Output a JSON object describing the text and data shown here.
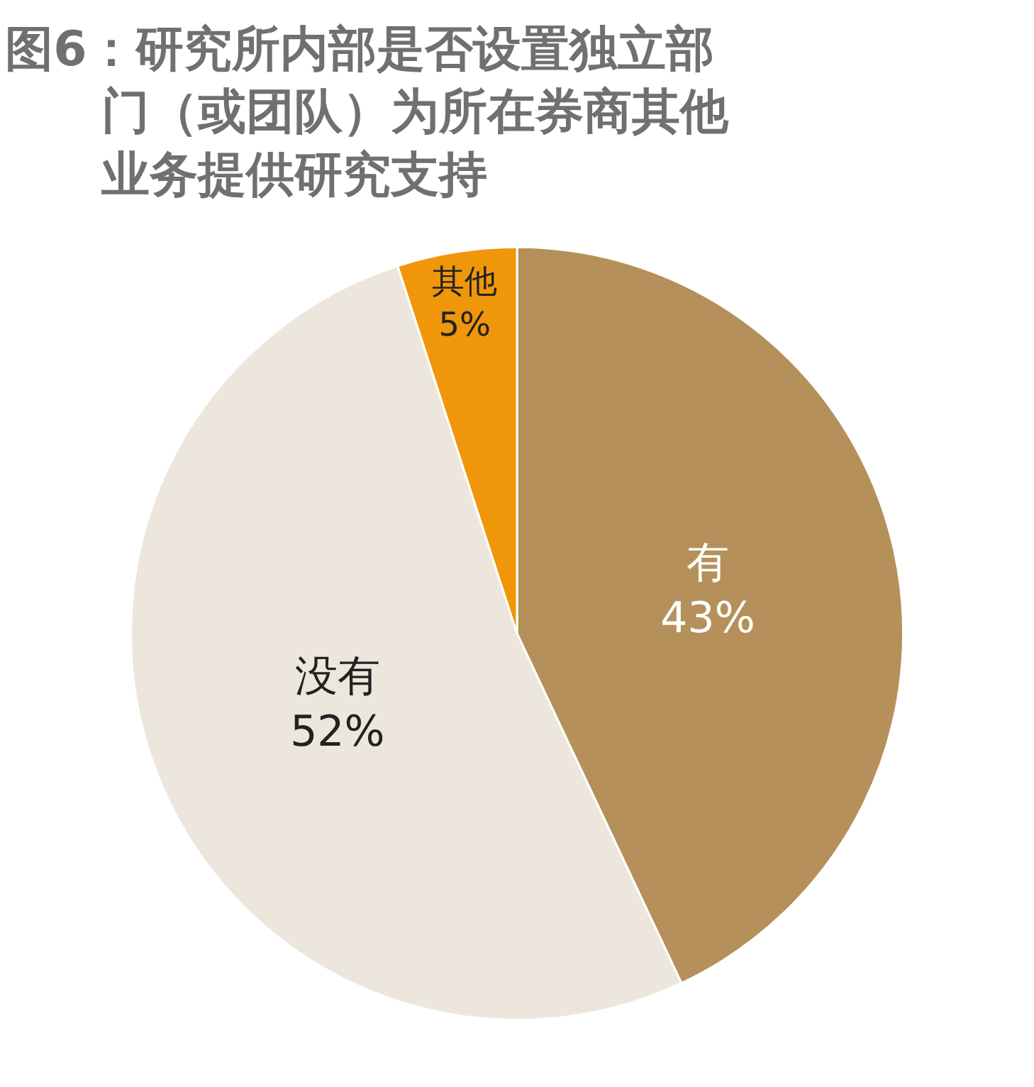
{
  "chart_data": {
    "type": "pie",
    "title": "图6：研究所内部是否设置独立部门（或团队）为所在券商其他业务提供研究支持",
    "categories": [
      "有",
      "没有",
      "其他"
    ],
    "values": [
      43,
      52,
      5
    ],
    "value_labels": [
      "43%",
      "52%",
      "5%"
    ],
    "colors": [
      "#b5905a",
      "#ede6dc",
      "#f0960a"
    ],
    "legend": false
  }
}
